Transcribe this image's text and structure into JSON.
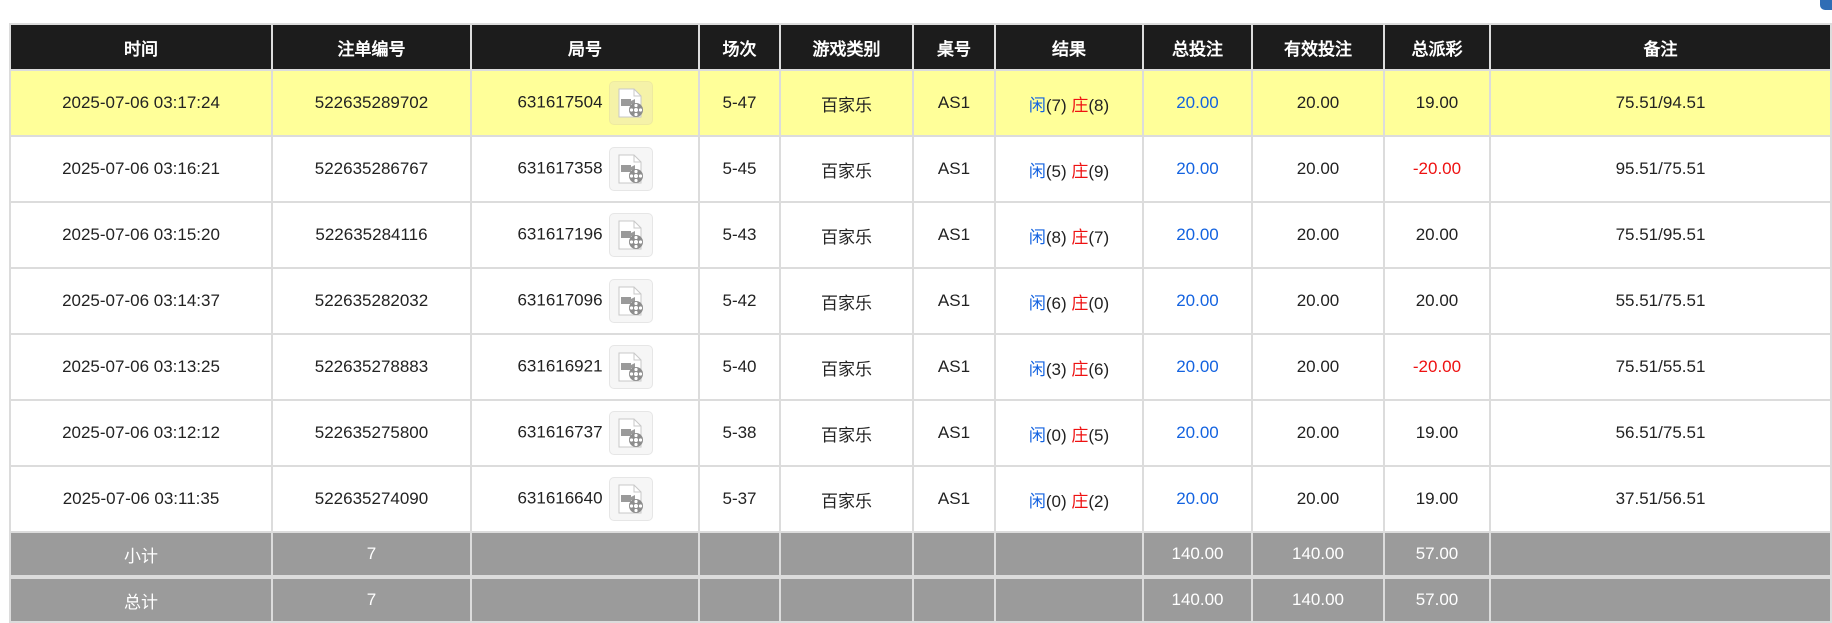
{
  "headers": [
    "时间",
    "注单编号",
    "局号",
    "场次",
    "游戏类别",
    "桌号",
    "结果",
    "总投注",
    "有效投注",
    "总派彩",
    "备注"
  ],
  "result_labels": {
    "player": "闲",
    "banker": "庄"
  },
  "colors": {
    "header_bg": "#1c1c1c",
    "highlight_row": "#ffff99",
    "summary_bg": "#9b9b9b",
    "player": "#1463e0",
    "banker": "#ee1111",
    "negative": "#ee1111",
    "bet": "#1463e0"
  },
  "rows": [
    {
      "time": "2025-07-06 03:17:24",
      "bet_id": "522635289702",
      "round": "631617504",
      "shoe": "5-47",
      "game": "百家乐",
      "table": "AS1",
      "player": "(7)",
      "banker": "(8)",
      "total_bet": "20.00",
      "valid_bet": "20.00",
      "payout": "19.00",
      "note": "75.51/94.51",
      "highlighted": true
    },
    {
      "time": "2025-07-06 03:16:21",
      "bet_id": "522635286767",
      "round": "631617358",
      "shoe": "5-45",
      "game": "百家乐",
      "table": "AS1",
      "player": "(5)",
      "banker": "(9)",
      "total_bet": "20.00",
      "valid_bet": "20.00",
      "payout": "-20.00",
      "note": "95.51/75.51"
    },
    {
      "time": "2025-07-06 03:15:20",
      "bet_id": "522635284116",
      "round": "631617196",
      "shoe": "5-43",
      "game": "百家乐",
      "table": "AS1",
      "player": "(8)",
      "banker": "(7)",
      "total_bet": "20.00",
      "valid_bet": "20.00",
      "payout": "20.00",
      "note": "75.51/95.51"
    },
    {
      "time": "2025-07-06 03:14:37",
      "bet_id": "522635282032",
      "round": "631617096",
      "shoe": "5-42",
      "game": "百家乐",
      "table": "AS1",
      "player": "(6)",
      "banker": "(0)",
      "total_bet": "20.00",
      "valid_bet": "20.00",
      "payout": "20.00",
      "note": "55.51/75.51"
    },
    {
      "time": "2025-07-06 03:13:25",
      "bet_id": "522635278883",
      "round": "631616921",
      "shoe": "5-40",
      "game": "百家乐",
      "table": "AS1",
      "player": "(3)",
      "banker": "(6)",
      "total_bet": "20.00",
      "valid_bet": "20.00",
      "payout": "-20.00",
      "note": "75.51/55.51"
    },
    {
      "time": "2025-07-06 03:12:12",
      "bet_id": "522635275800",
      "round": "631616737",
      "shoe": "5-38",
      "game": "百家乐",
      "table": "AS1",
      "player": "(0)",
      "banker": "(5)",
      "total_bet": "20.00",
      "valid_bet": "20.00",
      "payout": "19.00",
      "note": "56.51/75.51"
    },
    {
      "time": "2025-07-06 03:11:35",
      "bet_id": "522635274090",
      "round": "631616640",
      "shoe": "5-37",
      "game": "百家乐",
      "table": "AS1",
      "player": "(0)",
      "banker": "(2)",
      "total_bet": "20.00",
      "valid_bet": "20.00",
      "payout": "19.00",
      "note": "37.51/56.51"
    }
  ],
  "subtotal": {
    "label": "小计",
    "count": "7",
    "total_bet": "140.00",
    "valid_bet": "140.00",
    "payout": "57.00"
  },
  "total": {
    "label": "总计",
    "count": "7",
    "total_bet": "140.00",
    "valid_bet": "140.00",
    "payout": "57.00"
  }
}
